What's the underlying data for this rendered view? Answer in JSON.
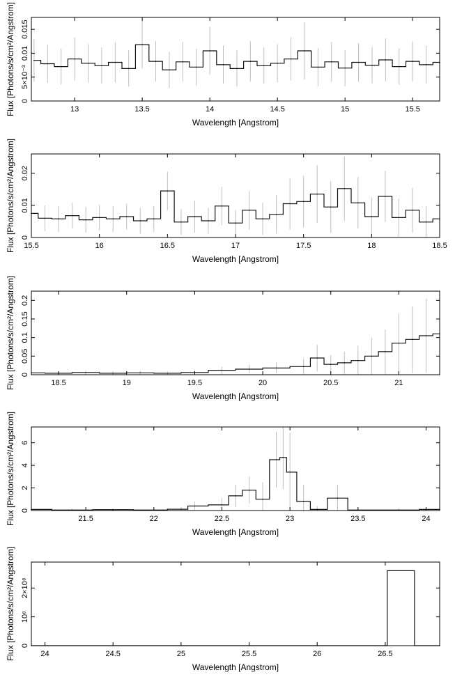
{
  "chart_data": [
    {
      "type": "line",
      "xlabel": "Wavelength [Angstrom]",
      "ylabel": "Flux [Photons/s/cm²/Angstrom]",
      "xlim": [
        12.68,
        15.7
      ],
      "ylim": [
        0,
        0.0175
      ],
      "xticks": [
        {
          "v": 13,
          "label": "13"
        },
        {
          "v": 13.5,
          "label": "13.5"
        },
        {
          "v": 14,
          "label": "14"
        },
        {
          "v": 14.5,
          "label": "14.5"
        },
        {
          "v": 15,
          "label": "15"
        },
        {
          "v": 15.5,
          "label": "15.5"
        }
      ],
      "yticks": [
        {
          "v": 0,
          "label": "0"
        },
        {
          "v": 0.005,
          "label": "5×10⁻³"
        },
        {
          "v": 0.01,
          "label": "0.01"
        },
        {
          "v": 0.015,
          "label": "0.015"
        }
      ],
      "series": [
        {
          "style": "histogram-with-errorbars",
          "x": [
            12.7,
            12.8,
            12.9,
            13.0,
            13.1,
            13.2,
            13.3,
            13.4,
            13.5,
            13.6,
            13.7,
            13.8,
            13.9,
            14.0,
            14.1,
            14.2,
            14.3,
            14.4,
            14.5,
            14.6,
            14.7,
            14.8,
            14.9,
            15.0,
            15.1,
            15.2,
            15.3,
            15.4,
            15.5,
            15.6,
            15.7
          ],
          "y": [
            0.0085,
            0.0078,
            0.0072,
            0.0088,
            0.0079,
            0.0074,
            0.0081,
            0.0068,
            0.0118,
            0.0083,
            0.0065,
            0.0082,
            0.0071,
            0.0105,
            0.0076,
            0.0068,
            0.0083,
            0.0074,
            0.0079,
            0.0088,
            0.0105,
            0.0071,
            0.0082,
            0.0069,
            0.0081,
            0.0075,
            0.0086,
            0.0072,
            0.0083,
            0.0076,
            0.0081
          ],
          "err": [
            0.0045,
            0.004,
            0.0038,
            0.0045,
            0.004,
            0.0038,
            0.0042,
            0.0038,
            0.005,
            0.0042,
            0.0038,
            0.0042,
            0.0038,
            0.005,
            0.004,
            0.0038,
            0.0042,
            0.0038,
            0.004,
            0.0045,
            0.006,
            0.004,
            0.0042,
            0.0038,
            0.004,
            0.0038,
            0.0045,
            0.0038,
            0.0042,
            0.004,
            0.0042
          ]
        }
      ]
    },
    {
      "type": "line",
      "xlabel": "Wavelength [Angstrom]",
      "ylabel": "Flux [Photons/s/cm²/Angstrom]",
      "xlim": [
        15.5,
        18.5
      ],
      "ylim": [
        0,
        0.026
      ],
      "xticks": [
        {
          "v": 15.5,
          "label": "15.5"
        },
        {
          "v": 16,
          "label": "16"
        },
        {
          "v": 16.5,
          "label": "16.5"
        },
        {
          "v": 17,
          "label": "17"
        },
        {
          "v": 17.5,
          "label": "17.5"
        },
        {
          "v": 18,
          "label": "18"
        },
        {
          "v": 18.5,
          "label": "18.5"
        }
      ],
      "yticks": [
        {
          "v": 0,
          "label": "0"
        },
        {
          "v": 0.01,
          "label": "0.01"
        },
        {
          "v": 0.02,
          "label": "0.02"
        }
      ],
      "series": [
        {
          "style": "histogram-with-errorbars",
          "x": [
            15.5,
            15.6,
            15.7,
            15.8,
            15.9,
            16.0,
            16.1,
            16.2,
            16.3,
            16.4,
            16.5,
            16.6,
            16.7,
            16.8,
            16.9,
            17.0,
            17.1,
            17.2,
            17.3,
            17.4,
            17.5,
            17.6,
            17.7,
            17.8,
            17.9,
            18.0,
            18.1,
            18.2,
            18.3,
            18.4,
            18.5
          ],
          "y": [
            0.0075,
            0.006,
            0.0058,
            0.0068,
            0.0055,
            0.0062,
            0.0058,
            0.0065,
            0.0052,
            0.0058,
            0.0145,
            0.0048,
            0.0065,
            0.0052,
            0.0098,
            0.0045,
            0.0085,
            0.0058,
            0.0072,
            0.0105,
            0.0112,
            0.0135,
            0.0095,
            0.0152,
            0.0108,
            0.0065,
            0.0128,
            0.0062,
            0.0085,
            0.0048,
            0.0058
          ],
          "err": [
            0.004,
            0.004,
            0.004,
            0.004,
            0.004,
            0.004,
            0.004,
            0.004,
            0.004,
            0.004,
            0.006,
            0.004,
            0.005,
            0.004,
            0.006,
            0.004,
            0.006,
            0.005,
            0.006,
            0.008,
            0.008,
            0.009,
            0.008,
            0.01,
            0.008,
            0.006,
            0.008,
            0.006,
            0.007,
            0.005,
            0.006
          ]
        }
      ]
    },
    {
      "type": "line",
      "xlabel": "Wavelength [Angstrom]",
      "ylabel": "Flux [Photons/s/cm²/Angstrom]",
      "xlim": [
        18.3,
        21.3
      ],
      "ylim": [
        0,
        0.225
      ],
      "xticks": [
        {
          "v": 18.5,
          "label": "18.5"
        },
        {
          "v": 19,
          "label": "19"
        },
        {
          "v": 19.5,
          "label": "19.5"
        },
        {
          "v": 20,
          "label": "20"
        },
        {
          "v": 20.5,
          "label": "20.5"
        },
        {
          "v": 21,
          "label": "21"
        }
      ],
      "yticks": [
        {
          "v": 0,
          "label": "0"
        },
        {
          "v": 0.05,
          "label": "0.05"
        },
        {
          "v": 0.1,
          "label": "0.1"
        },
        {
          "v": 0.15,
          "label": "0.15"
        },
        {
          "v": 0.2,
          "label": "0.2"
        }
      ],
      "series": [
        {
          "style": "histogram-with-errorbars",
          "x": [
            18.3,
            18.5,
            18.7,
            18.9,
            19.1,
            19.3,
            19.5,
            19.7,
            19.9,
            20.1,
            20.3,
            20.4,
            20.5,
            20.6,
            20.7,
            20.8,
            20.9,
            21.0,
            21.1,
            21.2,
            21.3
          ],
          "y": [
            0.005,
            0.004,
            0.006,
            0.004,
            0.005,
            0.004,
            0.006,
            0.012,
            0.015,
            0.018,
            0.022,
            0.045,
            0.028,
            0.032,
            0.038,
            0.05,
            0.062,
            0.085,
            0.095,
            0.105,
            0.11
          ],
          "err": [
            0.005,
            0.005,
            0.005,
            0.005,
            0.005,
            0.005,
            0.006,
            0.01,
            0.012,
            0.015,
            0.02,
            0.035,
            0.025,
            0.03,
            0.04,
            0.05,
            0.06,
            0.08,
            0.09,
            0.1,
            0.1
          ]
        }
      ]
    },
    {
      "type": "line",
      "xlabel": "Wavelength [Angstrom]",
      "ylabel": "Flux [Photons/s/cm²/Angstrom]",
      "xlim": [
        21.1,
        24.1
      ],
      "ylim": [
        0,
        7.4
      ],
      "xticks": [
        {
          "v": 21.5,
          "label": "21.5"
        },
        {
          "v": 22,
          "label": "22"
        },
        {
          "v": 22.5,
          "label": "22.5"
        },
        {
          "v": 23,
          "label": "23"
        },
        {
          "v": 23.5,
          "label": "23.5"
        },
        {
          "v": 24,
          "label": "24"
        }
      ],
      "yticks": [
        {
          "v": 0,
          "label": "0"
        },
        {
          "v": 2,
          "label": "2"
        },
        {
          "v": 4,
          "label": "4"
        },
        {
          "v": 6,
          "label": "6"
        }
      ],
      "series": [
        {
          "style": "histogram-with-errorbars",
          "x": [
            21.1,
            21.4,
            21.7,
            22.0,
            22.2,
            22.3,
            22.5,
            22.6,
            22.7,
            22.8,
            22.9,
            22.95,
            23.0,
            23.1,
            23.2,
            23.35,
            23.5,
            23.8,
            24.1
          ],
          "y": [
            0.1,
            0.05,
            0.08,
            0.05,
            0.12,
            0.4,
            0.5,
            1.3,
            1.8,
            1.0,
            4.5,
            4.7,
            3.4,
            0.8,
            0.1,
            1.1,
            0.05,
            0.05,
            0.1
          ],
          "err": [
            0.1,
            0.1,
            0.1,
            0.1,
            0.2,
            0.4,
            0.6,
            1.0,
            1.2,
            1.5,
            2.5,
            2.8,
            3.5,
            1.5,
            0.3,
            1.2,
            0.1,
            0.1,
            0.1
          ]
        }
      ]
    },
    {
      "type": "line",
      "xlabel": "Wavelength [Angstrom]",
      "ylabel": "Flux [Photons/s/cm²/Angstrom]",
      "xlim": [
        23.9,
        26.9
      ],
      "ylim": [
        0,
        290000000.0
      ],
      "xticks": [
        {
          "v": 24,
          "label": "24"
        },
        {
          "v": 24.5,
          "label": "24.5"
        },
        {
          "v": 25,
          "label": "25"
        },
        {
          "v": 25.5,
          "label": "25.5"
        },
        {
          "v": 26,
          "label": "26"
        },
        {
          "v": 26.5,
          "label": "26.5"
        }
      ],
      "yticks": [
        {
          "v": 0,
          "label": "0"
        },
        {
          "v": 100000000.0,
          "label": "10⁸"
        },
        {
          "v": 200000000.0,
          "label": "2×10⁸"
        }
      ],
      "series": [
        {
          "style": "histogram-with-errorbars",
          "x": [
            23.9,
            24.5,
            25.0,
            25.5,
            26.0,
            26.5,
            26.53,
            26.9
          ],
          "y": [
            0,
            0,
            0,
            0,
            0,
            0,
            260000000.0,
            0
          ],
          "err": [
            0,
            0,
            0,
            0,
            0,
            0,
            0,
            0
          ]
        }
      ]
    }
  ]
}
